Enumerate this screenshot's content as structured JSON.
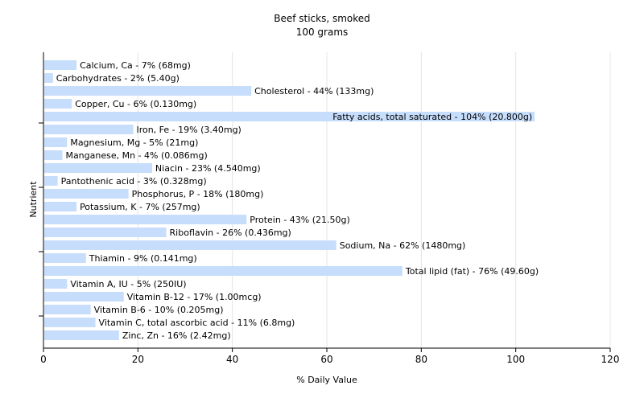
{
  "chart_data": {
    "type": "bar",
    "orientation": "horizontal",
    "title": "Beef sticks, smoked",
    "subtitle": "100 grams",
    "xlabel": "% Daily Value",
    "ylabel": "Nutrient",
    "xlim": [
      0,
      120
    ],
    "xticks": [
      "0",
      "20",
      "40",
      "60",
      "80",
      "100",
      "120"
    ],
    "grid": "vertical",
    "bar_color": "#c6ddfb",
    "categories": [
      "Calcium, Ca",
      "Carbohydrates",
      "Cholesterol",
      "Copper, Cu",
      "Fatty acids, total saturated",
      "Iron, Fe",
      "Magnesium, Mg",
      "Manganese, Mn",
      "Niacin",
      "Pantothenic acid",
      "Phosphorus, P",
      "Potassium, K",
      "Protein",
      "Riboflavin",
      "Sodium, Na",
      "Thiamin",
      "Total lipid (fat)",
      "Vitamin A, IU",
      "Vitamin B-12",
      "Vitamin B-6",
      "Vitamin C, total ascorbic acid",
      "Zinc, Zn"
    ],
    "values": [
      7,
      2,
      44,
      6,
      104,
      19,
      5,
      4,
      23,
      3,
      18,
      7,
      43,
      26,
      62,
      9,
      76,
      5,
      17,
      10,
      11,
      16
    ],
    "labels": [
      "Calcium, Ca - 7% (68mg)",
      "Carbohydrates - 2% (5.40g)",
      "Cholesterol - 44% (133mg)",
      "Copper, Cu - 6% (0.130mg)",
      "Fatty acids, total saturated - 104% (20.800g)",
      "Iron, Fe - 19% (3.40mg)",
      "Magnesium, Mg - 5% (21mg)",
      "Manganese, Mn - 4% (0.086mg)",
      "Niacin - 23% (4.540mg)",
      "Pantothenic acid - 3% (0.328mg)",
      "Phosphorus, P - 18% (180mg)",
      "Potassium, K - 7% (257mg)",
      "Protein - 43% (21.50g)",
      "Riboflavin - 26% (0.436mg)",
      "Sodium, Na - 62% (1480mg)",
      "Thiamin - 9% (0.141mg)",
      "Total lipid (fat) - 76% (49.60g)",
      "Vitamin A, IU - 5% (250IU)",
      "Vitamin B-12 - 17% (1.00mcg)",
      "Vitamin B-6 - 10% (0.205mg)",
      "Vitamin C, total ascorbic acid - 11% (6.8mg)",
      "Zinc, Zn - 16% (2.42mg)"
    ]
  }
}
